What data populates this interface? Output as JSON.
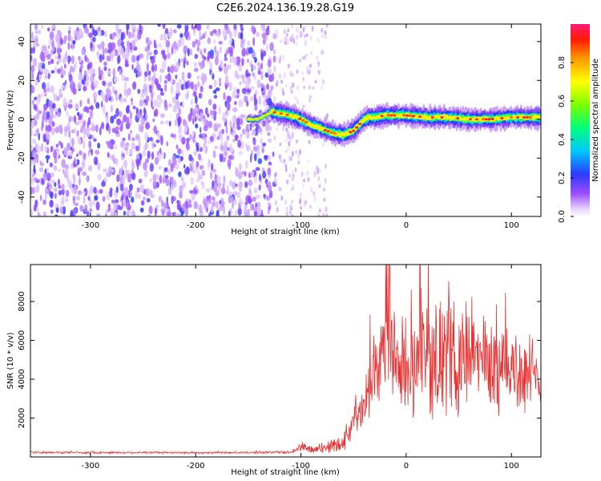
{
  "title": "C2E6.2024.136.19.28.G19",
  "chart_data": [
    {
      "type": "heatmap",
      "xlabel": "Height of straight line (km)",
      "ylabel": "Frequency (Hz)",
      "xlim": [
        -357,
        128
      ],
      "ylim": [
        -50,
        49
      ],
      "xticks": [
        -300,
        -200,
        -100,
        0,
        100
      ],
      "yticks": [
        -40,
        -20,
        0,
        20,
        40
      ],
      "colorbar": {
        "label": "Normalized spectral amplitude",
        "range": [
          0,
          1
        ],
        "ticks": [
          0.0,
          0.2,
          0.4,
          0.6,
          0.8
        ],
        "colormap": "rainbow (white-violet-blue-cyan-green-yellow-red-magenta)"
      },
      "noise_region_x": [
        -357,
        -125
      ],
      "sparse_region_x": [
        -125,
        -75
      ],
      "signal_track": {
        "x": [
          -150,
          -140,
          -128,
          -120,
          -110,
          -100,
          -90,
          -80,
          -70,
          -60,
          -50,
          -45,
          -40,
          -35,
          -30,
          -20,
          -10,
          0,
          20,
          40,
          60,
          80,
          100,
          120,
          128
        ],
        "y": [
          0,
          0,
          4,
          3,
          2,
          0,
          -3,
          -5,
          -7,
          -8,
          -6,
          -3,
          0,
          1,
          1,
          2,
          2,
          2,
          1,
          1,
          0,
          0,
          1,
          1,
          1
        ],
        "peak_amplitude": 0.95
      }
    },
    {
      "type": "line",
      "xlabel": "Height of straight line (km)",
      "ylabel": "SNR (10 * v/v)",
      "xlim": [
        -357,
        128
      ],
      "ylim": [
        0,
        9900
      ],
      "xticks": [
        -300,
        -200,
        -100,
        0,
        100
      ],
      "yticks": [
        2000,
        4000,
        6000,
        8000
      ],
      "series_color": "#e83030",
      "series": [
        {
          "x": [
            -357,
            -300,
            -250,
            -200,
            -150,
            -110,
            -100,
            -90,
            -80,
            -70,
            -60,
            -50,
            -45,
            -40,
            -35,
            -30,
            -25,
            -20,
            -15,
            -10,
            0,
            10,
            20,
            30,
            40,
            50,
            60,
            70,
            80,
            90,
            100,
            110,
            120,
            128
          ],
          "y": [
            230,
            230,
            230,
            220,
            230,
            250,
            500,
            380,
            420,
            600,
            800,
            1800,
            2700,
            3200,
            4100,
            4500,
            4800,
            5300,
            5000,
            4700,
            4600,
            4800,
            5200,
            5300,
            5000,
            5100,
            5400,
            4900,
            4900,
            4700,
            4600,
            4300,
            3900,
            3800
          ],
          "spread": [
            60,
            60,
            60,
            60,
            60,
            80,
            300,
            220,
            300,
            400,
            500,
            900,
            1300,
            1600,
            2000,
            2200,
            2500,
            2700,
            2700,
            2500,
            2400,
            2700,
            2900,
            3000,
            3000,
            3000,
            3000,
            2800,
            2700,
            2600,
            2500,
            2400,
            2300,
            2200
          ]
        }
      ]
    }
  ]
}
